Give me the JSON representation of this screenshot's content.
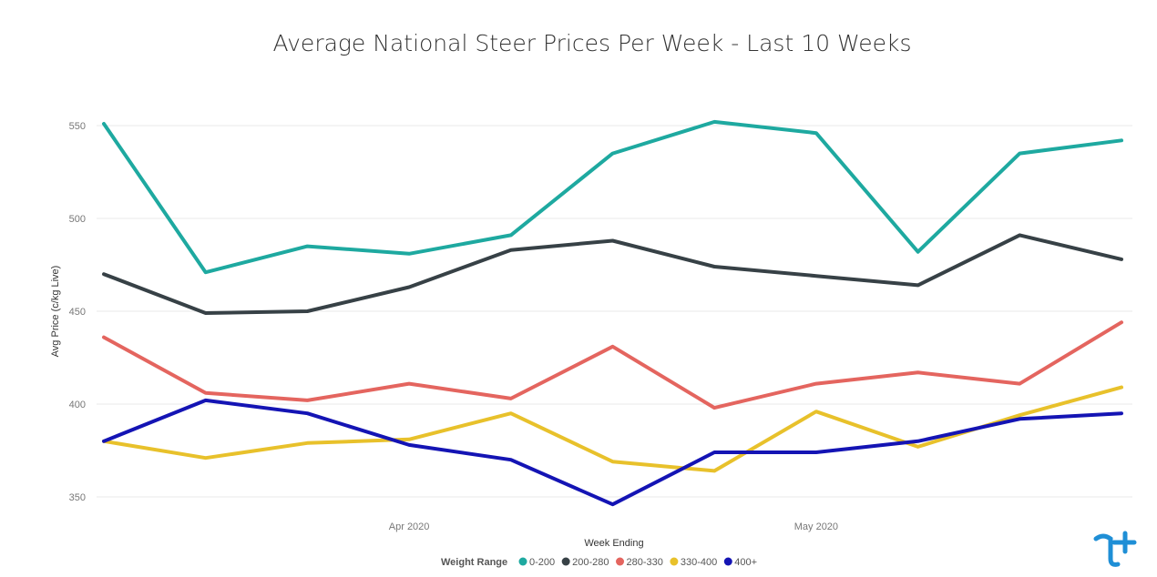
{
  "chart_data": {
    "type": "line",
    "title": "Average National Steer Prices Per Week - Last 10 Weeks",
    "xlabel": "Week Ending",
    "ylabel": "Avg Price (c/kg Live)",
    "ylim": [
      340,
      565
    ],
    "yticks": [
      350,
      400,
      450,
      500,
      550
    ],
    "xticks": [
      {
        "label": "Apr 2020",
        "x": 3
      },
      {
        "label": "May 2020",
        "x": 7
      }
    ],
    "x": [
      0,
      1,
      2,
      3,
      4,
      5,
      6,
      7,
      8,
      9,
      10
    ],
    "grid": true,
    "legend_position": "bottom",
    "legend_title": "Weight Range",
    "series": [
      {
        "name": "0-200",
        "color": "#1ea9a0",
        "values": [
          551,
          471,
          485,
          481,
          491,
          535,
          552,
          546,
          482,
          535,
          542
        ]
      },
      {
        "name": "200-280",
        "color": "#374146",
        "values": [
          470,
          449,
          450,
          463,
          483,
          488,
          474,
          469,
          464,
          491,
          478
        ]
      },
      {
        "name": "280-330",
        "color": "#e4655f",
        "values": [
          436,
          406,
          402,
          411,
          403,
          431,
          398,
          411,
          417,
          411,
          444
        ]
      },
      {
        "name": "330-400",
        "color": "#e8c12b",
        "values": [
          380,
          371,
          379,
          381,
          395,
          369,
          364,
          396,
          377,
          394,
          409
        ]
      },
      {
        "name": "400+",
        "color": "#1414b4",
        "values": [
          380,
          402,
          395,
          378,
          370,
          346,
          374,
          374,
          380,
          392,
          395
        ]
      }
    ]
  },
  "logo": {
    "name": "tt-logo-icon",
    "color": "#1f8fd6"
  }
}
